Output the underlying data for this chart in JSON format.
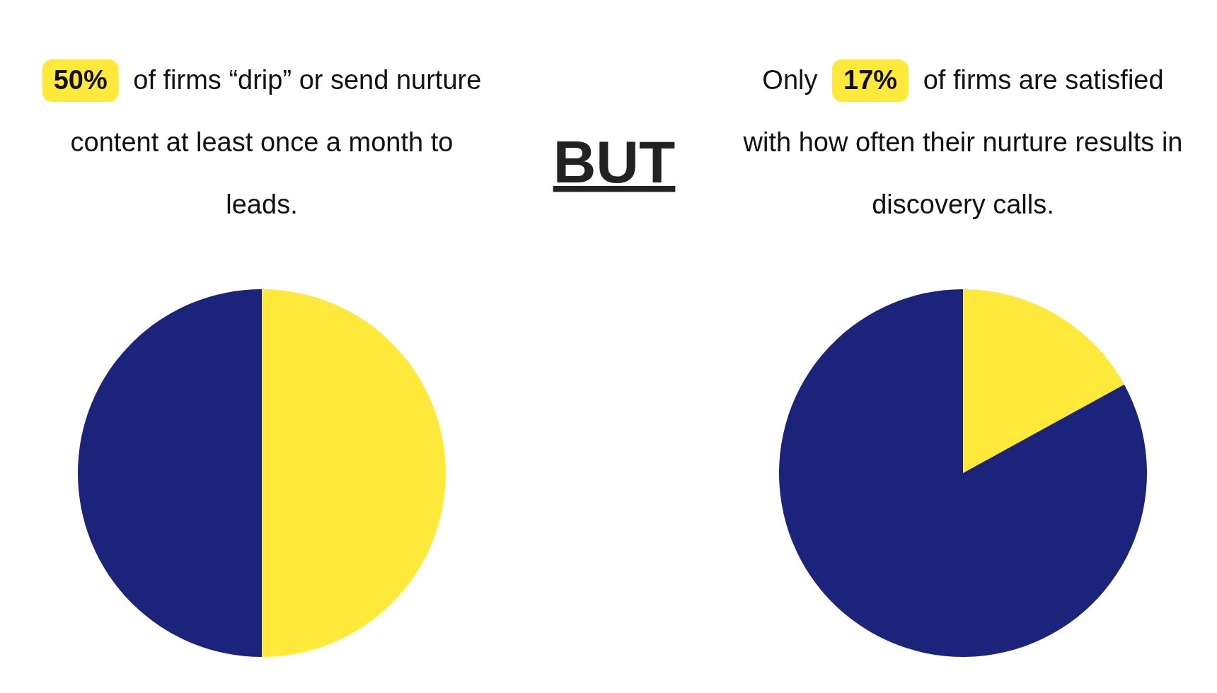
{
  "chart_data": [
    {
      "type": "pie",
      "title": "50% of firms “drip” or send nurture content at least once a month to leads.",
      "categories": [
        null,
        null
      ],
      "values": [
        50,
        50
      ],
      "colors": [
        "#ffea3b",
        "#1b237a"
      ]
    },
    {
      "type": "other",
      "title": "BUT"
    },
    {
      "type": "pie",
      "title": "Only 17% of firms are satisfied with how often their nurture results in discovery calls.",
      "categories": [
        null,
        null
      ],
      "values": [
        17,
        83
      ],
      "colors": [
        "#ffea3b",
        "#1b237a"
      ]
    }
  ]
}
